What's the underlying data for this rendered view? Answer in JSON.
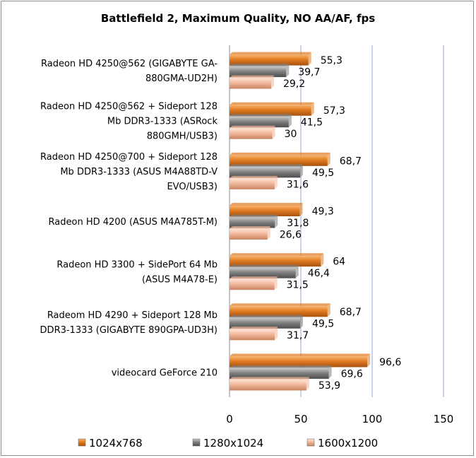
{
  "chart_data": {
    "type": "bar",
    "orientation": "horizontal",
    "title": "Battlefield 2, Maximum Quality, NO AA/AF, fps",
    "xlim": [
      0,
      150
    ],
    "ticks": [
      0,
      50,
      100,
      150
    ],
    "grid": true,
    "legend_position": "bottom",
    "categories": [
      [
        "Radeon HD 4250@562 (GIGABYTE GA-",
        "880GMA-UD2H)"
      ],
      [
        "Radeon HD 4250@562 + Sideport 128",
        "Mb DDR3-1333 (ASRock",
        "880GMH/USB3)"
      ],
      [
        "Radeon HD 4250@700 + Sideport 128",
        "Mb DDR3-1333 (ASUS M4A88TD-V",
        "EVO/USB3)"
      ],
      [
        "Radeon HD 4200 (ASUS M4A785T-M)"
      ],
      [
        "Radeon HD 3300 + SidePort 64 Mb",
        "(ASUS M4A78-E)"
      ],
      [
        "Radeom HD 4290 + Sideport 128 Mb",
        "DDR3-1333 (GIGABYTE 890GPA-UD3H)"
      ],
      [
        "videocard GeForce 210"
      ]
    ],
    "series": [
      {
        "name": "1024x768",
        "color": "#e07b22",
        "values": [
          55.3,
          57.3,
          68.7,
          49.3,
          64,
          68.7,
          96.6
        ],
        "labels": [
          "55,3",
          "57,3",
          "68,7",
          "49,3",
          "64",
          "68,7",
          "96,6"
        ]
      },
      {
        "name": "1280x1024",
        "color": "#7f7f7f",
        "values": [
          39.7,
          41.5,
          49.5,
          31.8,
          46.4,
          49.5,
          69.6
        ],
        "labels": [
          "39,7",
          "41,5",
          "49,5",
          "31,8",
          "46,4",
          "49,5",
          "69,6"
        ]
      },
      {
        "name": "1600x1200",
        "color": "#f2b79a",
        "values": [
          29.2,
          30,
          31.6,
          26.6,
          31.5,
          31.7,
          53.9
        ],
        "labels": [
          "29,2",
          "30",
          "31,6",
          "26,6",
          "31,5",
          "31,7",
          "53,9"
        ]
      }
    ]
  }
}
